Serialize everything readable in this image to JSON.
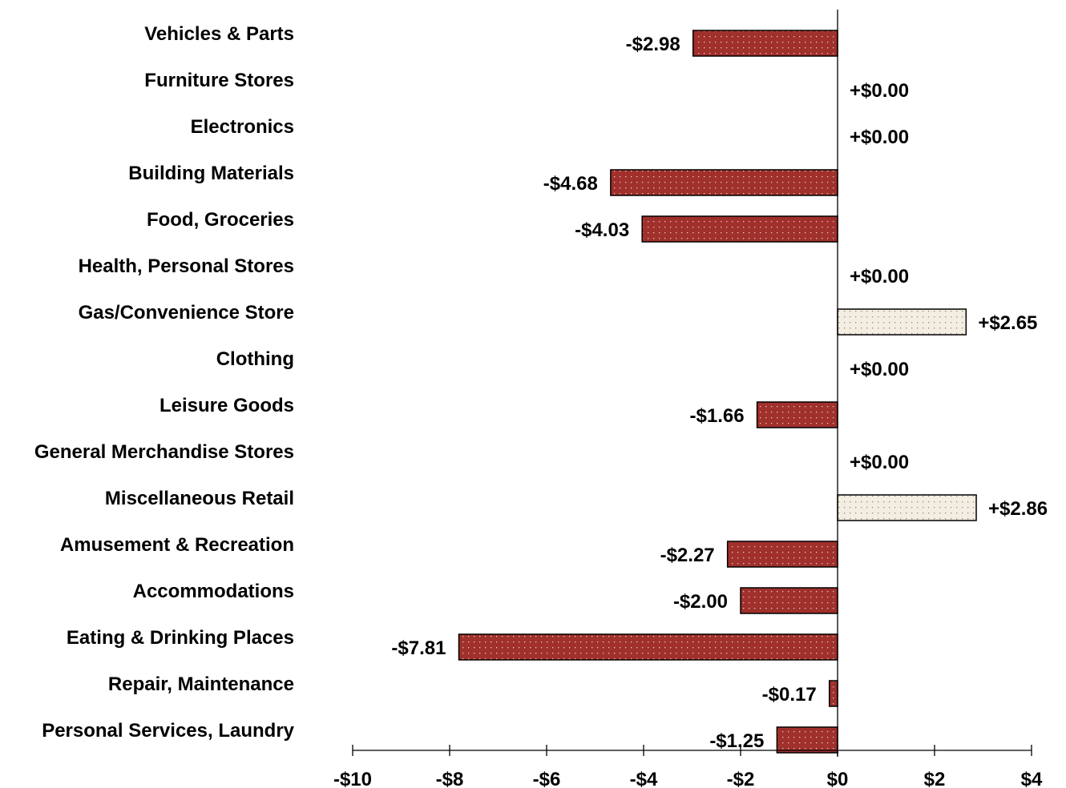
{
  "chart_data": {
    "type": "bar",
    "orientation": "horizontal",
    "categories": [
      "Vehicles & Parts",
      "Furniture Stores",
      "Electronics",
      "Building Materials",
      "Food, Groceries",
      "Health, Personal Stores",
      "Gas/Convenience Store",
      "Clothing",
      "Leisure Goods",
      "General Merchandise Stores",
      "Miscellaneous Retail",
      "Amusement & Recreation",
      "Accommodations",
      "Eating & Drinking Places",
      "Repair, Maintenance",
      "Personal Services, Laundry"
    ],
    "values": [
      -2.98,
      0.0,
      0.0,
      -4.68,
      -4.03,
      0.0,
      2.65,
      0.0,
      -1.66,
      0.0,
      2.86,
      -2.27,
      -2.0,
      -7.81,
      -0.17,
      -1.25
    ],
    "data_labels": [
      "-$2.98",
      "+$0.00",
      "+$0.00",
      "-$4.68",
      "-$4.03",
      "+$0.00",
      "+$2.65",
      "+$0.00",
      "-$1.66",
      "+$0.00",
      "+$2.86",
      "-$2.27",
      "-$2.00",
      "-$7.81",
      "-$0.17",
      "-$1.25"
    ],
    "xlim": [
      -10,
      4
    ],
    "x_ticks": [
      -10,
      -8,
      -6,
      -4,
      -2,
      0,
      2,
      4
    ],
    "x_tick_labels": [
      "-$10",
      "-$8",
      "-$6",
      "-$4",
      "-$2",
      "$0",
      "$2",
      "$4"
    ],
    "title": "",
    "xlabel": "",
    "ylabel": "",
    "grid": false,
    "colors": {
      "negative_fill": "#A0302C",
      "positive_fill": "#F3EDE2",
      "negative_dots": "#E9C9B6",
      "positive_dots": "#9C8C7A",
      "outline": "#000000"
    }
  }
}
